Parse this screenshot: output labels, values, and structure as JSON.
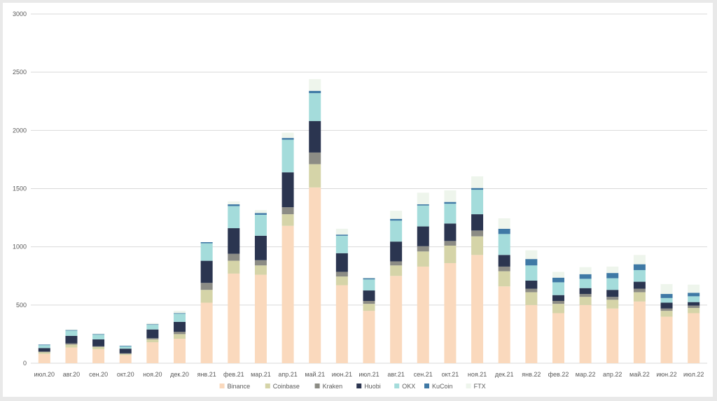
{
  "chart_data": {
    "type": "bar",
    "stacked": true,
    "title": "",
    "xlabel": "",
    "ylabel": "",
    "ylim": [
      0,
      3000
    ],
    "yticks": [
      0,
      500,
      1000,
      1500,
      2000,
      2500,
      3000
    ],
    "grid": true,
    "legend_position": "bottom",
    "categories": [
      "июл.20",
      "авг.20",
      "сен.20",
      "окт.20",
      "ноя.20",
      "дек.20",
      "янв.21",
      "фев.21",
      "мар.21",
      "апр.21",
      "май.21",
      "июн.21",
      "июл.21",
      "авг.21",
      "сен.21",
      "окт.21",
      "ноя.21",
      "дек.21",
      "янв.22",
      "фев.22",
      "мар.22",
      "апр.22",
      "май.22",
      "июн.22",
      "июл.22"
    ],
    "series": [
      {
        "name": "Binance",
        "color": "#fad9bd",
        "values": [
          80,
          135,
          120,
          70,
          180,
          210,
          520,
          770,
          760,
          1180,
          1510,
          670,
          450,
          750,
          830,
          860,
          930,
          660,
          500,
          430,
          500,
          470,
          530,
          400,
          430
        ]
      },
      {
        "name": "Coinbase",
        "color": "#d5d4a8",
        "values": [
          15,
          25,
          20,
          10,
          25,
          40,
          110,
          110,
          80,
          100,
          200,
          75,
          60,
          90,
          130,
          150,
          160,
          130,
          110,
          80,
          70,
          75,
          80,
          50,
          45
        ]
      },
      {
        "name": "Kraken",
        "color": "#8c8c85",
        "values": [
          5,
          10,
          5,
          5,
          10,
          20,
          60,
          60,
          45,
          60,
          100,
          40,
          25,
          35,
          45,
          40,
          50,
          40,
          30,
          25,
          25,
          25,
          30,
          20,
          20
        ]
      },
      {
        "name": "Huobi",
        "color": "#2b3550",
        "values": [
          30,
          65,
          60,
          40,
          75,
          85,
          190,
          220,
          210,
          300,
          270,
          160,
          90,
          170,
          170,
          150,
          140,
          100,
          70,
          50,
          50,
          60,
          60,
          50,
          30
        ]
      },
      {
        "name": "OKX",
        "color": "#a4dcdb",
        "values": [
          25,
          45,
          40,
          20,
          40,
          70,
          150,
          190,
          180,
          280,
          240,
          150,
          95,
          180,
          180,
          170,
          210,
          180,
          130,
          110,
          80,
          100,
          100,
          40,
          50
        ]
      },
      {
        "name": "KuCoin",
        "color": "#3f79a5",
        "values": [
          5,
          5,
          5,
          5,
          5,
          5,
          10,
          15,
          15,
          15,
          20,
          10,
          10,
          15,
          10,
          15,
          15,
          45,
          55,
          40,
          40,
          45,
          50,
          35,
          30
        ]
      },
      {
        "name": "FTX",
        "color": "#eef5ec",
        "values": [
          0,
          5,
          5,
          0,
          10,
          20,
          0,
          25,
          25,
          45,
          100,
          50,
          5,
          70,
          100,
          100,
          100,
          90,
          75,
          50,
          60,
          55,
          80,
          85,
          70
        ]
      }
    ]
  }
}
